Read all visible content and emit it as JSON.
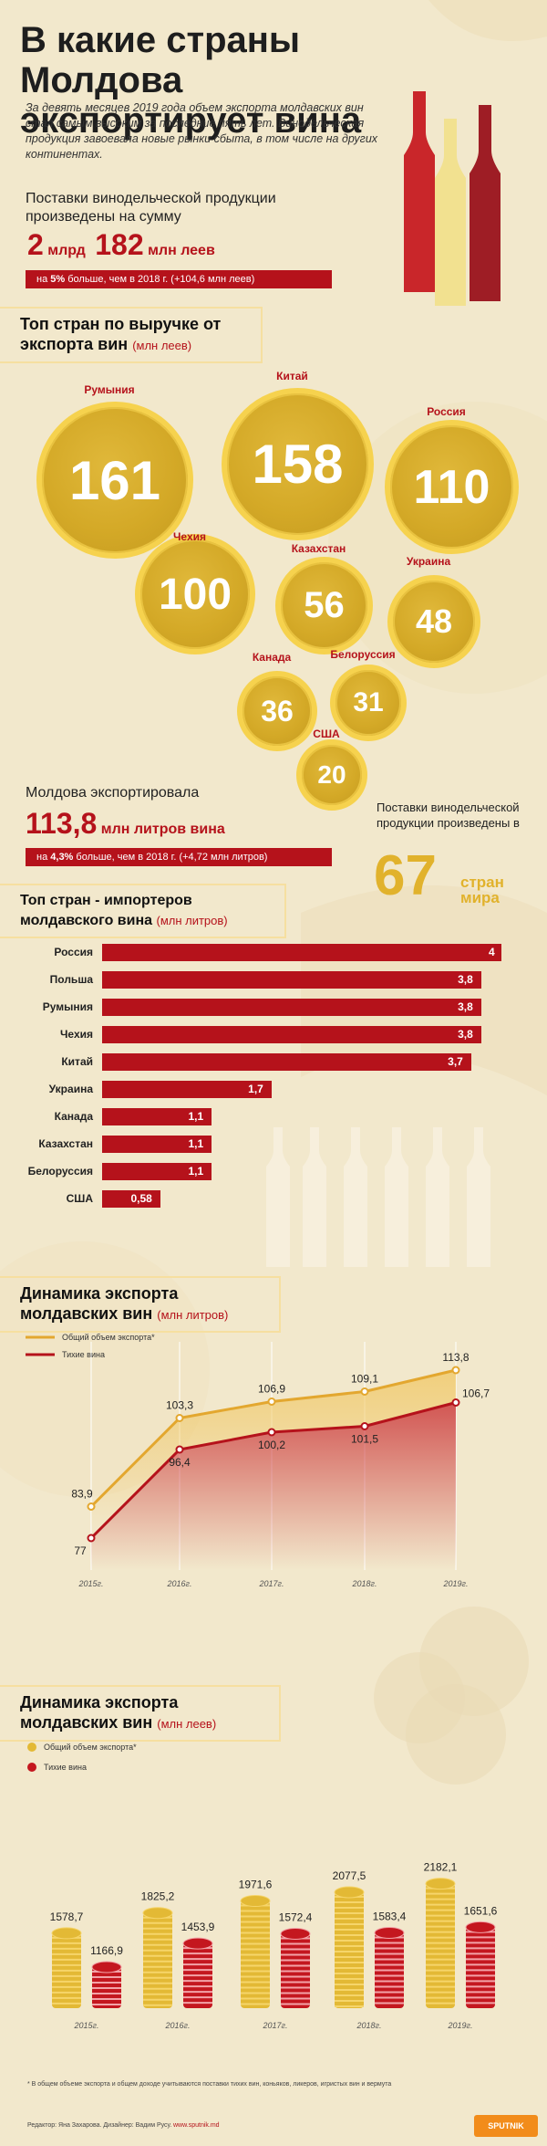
{
  "title": "В какие страны Молдова экспортирует вина",
  "intro": "За девять месяцев 2019 года объем экспорта молдавских вин стал самым высоким за последние пять лет. Винодельческая продукция завоевала новые рынки сбыта, в том числе на других континентах.",
  "revenue": {
    "caption": "Поставки винодельческой продукции произведены на сумму",
    "big1": "2",
    "unit1": "млрд",
    "big2": "182",
    "unit2": "млн леев",
    "note_pre": "на",
    "note_pct": "5%",
    "note_post": "больше, чем в 2018 г. (+104,6  млн леев)"
  },
  "top_revenue": {
    "heading": "Топ стран по выручке от экспорта вин",
    "unit": "(млн леев)",
    "coins": [
      {
        "country": "Румыния",
        "value": "161"
      },
      {
        "country": "Китай",
        "value": "158"
      },
      {
        "country": "Россия",
        "value": "110"
      },
      {
        "country": "Чехия",
        "value": "100"
      },
      {
        "country": "Казахстан",
        "value": "56"
      },
      {
        "country": "Украина",
        "value": "48"
      },
      {
        "country": "Канада",
        "value": "36"
      },
      {
        "country": "Белоруссия",
        "value": "31"
      },
      {
        "country": "США",
        "value": "20"
      }
    ]
  },
  "volume": {
    "caption": "Молдова экспортировала",
    "big": "113,8",
    "unit": "млн литров вина",
    "note_pre": "на",
    "note_pct": "4,3%",
    "note_post": "больше, чем в 2018 г. (+4,72 млн литров)"
  },
  "countries_block": {
    "caption": "Поставки винодельческой продукции произведены в",
    "big": "67",
    "unit1": "стран",
    "unit2": "мира"
  },
  "top_volume_header": {
    "heading": "Топ стран - импортеров молдавского вина",
    "unit": "(млн литров)"
  },
  "chart_data": [
    {
      "type": "bar",
      "orientation": "horizontal",
      "title": "Топ стран - импортеров молдавского вина",
      "unit": "(млн литров)",
      "categories": [
        "Россия",
        "Польша",
        "Румыния",
        "Чехия",
        "Китай",
        "Украина",
        "Канада",
        "Казахстан",
        "Белоруссия",
        "США"
      ],
      "values": [
        4,
        3.8,
        3.8,
        3.8,
        3.7,
        1.7,
        1.1,
        1.1,
        1.1,
        0.58
      ],
      "value_labels": [
        "4",
        "3,8",
        "3,8",
        "3,8",
        "3,7",
        "1,7",
        "1,1",
        "1,1",
        "1,1",
        "0,58"
      ],
      "color": "#b5121b"
    },
    {
      "type": "line",
      "title": "Динамика экспорта молдавских вин",
      "unit": "(млн литров)",
      "x": [
        "2015г.",
        "2016г.",
        "2017г.",
        "2018г.",
        "2019г."
      ],
      "series": [
        {
          "name": "Общий объем экспорта*",
          "values": [
            83.9,
            103.3,
            106.9,
            109.1,
            113.8
          ],
          "labels": [
            "83,9",
            "103,3",
            "106,9",
            "109,1",
            "113,8"
          ],
          "color": "#e3a72f"
        },
        {
          "name": "Тихие вина",
          "values": [
            77,
            96.4,
            100.2,
            101.5,
            106.7
          ],
          "labels": [
            "77",
            "96,4",
            "100,2",
            "101,5",
            "106,7"
          ],
          "color": "#b5121b"
        }
      ],
      "grid": "vertical",
      "legend": "top-left"
    },
    {
      "type": "bar",
      "title": "Динамика экспорта молдавских вин",
      "unit": "(млн леев)",
      "categories": [
        "2015г.",
        "2016г.",
        "2017г.",
        "2018г.",
        "2019г."
      ],
      "series": [
        {
          "name": "Общий объем экспорта*",
          "values": [
            1578.7,
            1825.2,
            1971.6,
            2077.5,
            2182.1
          ],
          "labels": [
            "1578,7",
            "1825,2",
            "1971,6",
            "2077,5",
            "2182,1"
          ],
          "color": "#e3b935"
        },
        {
          "name": "Тихие вина",
          "values": [
            1166.9,
            1453.9,
            1572.4,
            1583.4,
            1651.6
          ],
          "labels": [
            "1166,9",
            "1453,9",
            "1572,4",
            "1583,4",
            "1651,6"
          ],
          "color": "#c4171f"
        }
      ],
      "legend": "top-left"
    }
  ],
  "footnote": "* В общем объеме экспорта и общем доходе учитываются поставки тихих вин, коньяков, ликеров, игристых вин и вермута",
  "credits": "Редактор: Яна Захарова. Дизайнер: Вадим Русу.",
  "site": "www.sputnik.md",
  "logo": "SPUTNIK",
  "colors": {
    "accent": "#b5121b",
    "gold": "#e3b935",
    "background": "#f2e8cc"
  }
}
